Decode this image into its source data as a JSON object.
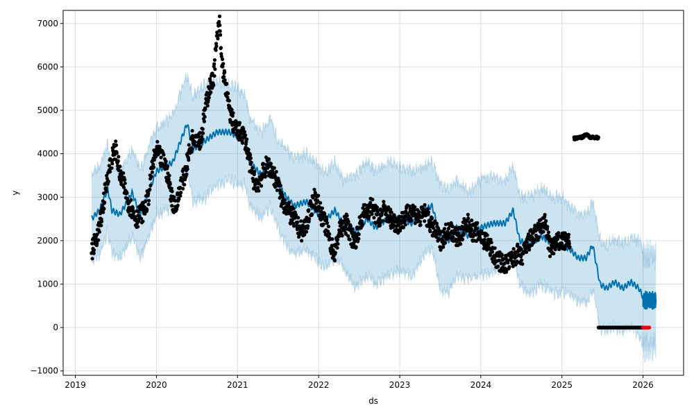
{
  "chart_data": {
    "type": "line",
    "title": "",
    "xlabel": "ds",
    "ylabel": "y",
    "xlim": [
      2018.85,
      2026.5
    ],
    "ylim": [
      -1100,
      7300
    ],
    "grid": true,
    "x_ticks": [
      {
        "value": 2019,
        "label": "2019"
      },
      {
        "value": 2020,
        "label": "2020"
      },
      {
        "value": 2021,
        "label": "2021"
      },
      {
        "value": 2022,
        "label": "2022"
      },
      {
        "value": 2023,
        "label": "2023"
      },
      {
        "value": 2024,
        "label": "2024"
      },
      {
        "value": 2025,
        "label": "2025"
      },
      {
        "value": 2026,
        "label": "2026"
      }
    ],
    "y_ticks": [
      {
        "value": -1000,
        "label": "−1000"
      },
      {
        "value": 0,
        "label": "0"
      },
      {
        "value": 1000,
        "label": "1000"
      },
      {
        "value": 2000,
        "label": "2000"
      },
      {
        "value": 3000,
        "label": "3000"
      },
      {
        "value": 4000,
        "label": "4000"
      },
      {
        "value": 5000,
        "label": "5000"
      },
      {
        "value": 6000,
        "label": "6000"
      },
      {
        "value": 7000,
        "label": "7000"
      }
    ],
    "colors": {
      "forecast": "#0072B2",
      "interval": "#0072B2",
      "actual": "#000000",
      "recent": "#ff0000",
      "grid": "#dddddd"
    },
    "series": [
      {
        "name": "actual",
        "kind": "scatter",
        "x": [
          2019.2,
          2019.25,
          2019.3,
          2019.35,
          2019.4,
          2019.45,
          2019.5,
          2019.55,
          2019.6,
          2019.65,
          2019.7,
          2019.75,
          2019.8,
          2019.85,
          2019.9,
          2019.95,
          2020.0,
          2020.05,
          2020.1,
          2020.15,
          2020.2,
          2020.25,
          2020.3,
          2020.35,
          2020.4,
          2020.45,
          2020.5,
          2020.55,
          2020.6,
          2020.65,
          2020.7,
          2020.75,
          2020.78,
          2020.8,
          2020.85,
          2020.9,
          2020.95,
          2021.0,
          2021.05,
          2021.1,
          2021.15,
          2021.2,
          2021.25,
          2021.3,
          2021.35,
          2021.4,
          2021.45,
          2021.5,
          2021.55,
          2021.6,
          2021.65,
          2021.7,
          2021.75,
          2021.8,
          2021.85,
          2021.9,
          2021.95,
          2022.0,
          2022.05,
          2022.1,
          2022.15,
          2022.2,
          2022.25,
          2022.3,
          2022.35,
          2022.4,
          2022.45,
          2022.5,
          2022.55,
          2022.6,
          2022.65,
          2022.7,
          2022.75,
          2022.8,
          2022.85,
          2022.9,
          2022.95,
          2023.0,
          2023.05,
          2023.1,
          2023.15,
          2023.2,
          2023.25,
          2023.3,
          2023.35,
          2023.4,
          2023.45,
          2023.5,
          2023.55,
          2023.6,
          2023.65,
          2023.7,
          2023.75,
          2023.8,
          2023.85,
          2023.9,
          2023.95,
          2024.0,
          2024.05,
          2024.1,
          2024.15,
          2024.2,
          2024.25,
          2024.3,
          2024.35,
          2024.4,
          2024.45,
          2024.5,
          2024.55,
          2024.6,
          2024.65,
          2024.7,
          2024.75,
          2024.8,
          2024.85,
          2024.9,
          2024.95,
          2025.0,
          2025.05,
          2025.1
        ],
        "y": [
          1750,
          2000,
          2300,
          2900,
          3500,
          3900,
          4100,
          3500,
          3300,
          2900,
          2700,
          2500,
          2600,
          2700,
          3000,
          3700,
          4100,
          3900,
          3800,
          3400,
          2900,
          2800,
          3300,
          3500,
          4000,
          4400,
          4400,
          4300,
          5000,
          5500,
          5700,
          6700,
          7000,
          6200,
          5600,
          5000,
          4700,
          4500,
          4500,
          4300,
          3800,
          3400,
          3300,
          3500,
          3700,
          3700,
          3500,
          3300,
          2900,
          2800,
          2600,
          2500,
          2300,
          2200,
          2400,
          2700,
          3000,
          2800,
          2500,
          2300,
          1900,
          1700,
          2200,
          2300,
          2400,
          2100,
          2000,
          2300,
          2600,
          2700,
          2800,
          2600,
          2500,
          2700,
          2600,
          2500,
          2400,
          2400,
          2500,
          2600,
          2700,
          2600,
          2500,
          2650,
          2500,
          2300,
          2200,
          2000,
          2100,
          2300,
          2200,
          2100,
          2100,
          2300,
          2400,
          2200,
          2200,
          2100,
          2000,
          1900,
          1700,
          1550,
          1500,
          1450,
          1500,
          1600,
          1700,
          1600,
          1800,
          2000,
          2100,
          2200,
          2350,
          2400,
          1800,
          1900,
          1950,
          2000,
          1950,
          2000
        ]
      },
      {
        "name": "actual-plateau",
        "kind": "scatter",
        "x": [
          2025.15,
          2025.25,
          2025.3,
          2025.35,
          2025.45
        ],
        "y": [
          4350,
          4380,
          4450,
          4380,
          4370
        ]
      },
      {
        "name": "actual-zero",
        "kind": "scatter",
        "x": [
          2025.45,
          2026.0
        ],
        "y": [
          0,
          0
        ]
      },
      {
        "name": "recent",
        "kind": "scatter",
        "x": [
          2026.0,
          2026.08
        ],
        "y": [
          0,
          0
        ]
      },
      {
        "name": "yhat",
        "kind": "line",
        "x": [
          2019.2,
          2019.3,
          2019.4,
          2019.45,
          2019.55,
          2019.7,
          2019.8,
          2019.9,
          2020.0,
          2020.1,
          2020.2,
          2020.3,
          2020.38,
          2020.45,
          2020.6,
          2020.75,
          2020.9,
          2021.0,
          2021.1,
          2021.15,
          2021.3,
          2021.4,
          2021.5,
          2021.6,
          2021.7,
          2021.85,
          2022.0,
          2022.1,
          2022.2,
          2022.3,
          2022.45,
          2022.6,
          2022.7,
          2022.85,
          2023.0,
          2023.15,
          2023.3,
          2023.4,
          2023.5,
          2023.6,
          2023.7,
          2023.85,
          2024.0,
          2024.15,
          2024.3,
          2024.4,
          2024.48,
          2024.6,
          2024.75,
          2024.9,
          2025.0,
          2025.1,
          2025.2,
          2025.3,
          2025.38,
          2025.47,
          2025.55,
          2025.65,
          2025.75,
          2025.85,
          2025.95,
          2026.0
        ],
        "y": [
          2500,
          2700,
          3200,
          2700,
          2600,
          3100,
          2600,
          3100,
          3600,
          3700,
          3800,
          4300,
          4700,
          4100,
          4300,
          4500,
          4500,
          4400,
          4300,
          3800,
          3500,
          3800,
          3300,
          3000,
          2800,
          2900,
          2600,
          2500,
          2700,
          2400,
          2200,
          2500,
          2300,
          2500,
          2500,
          2400,
          2700,
          2800,
          2100,
          2000,
          2300,
          2100,
          2300,
          2400,
          2400,
          2700,
          2000,
          1900,
          2100,
          1900,
          1900,
          1800,
          1600,
          1600,
          1900,
          1000,
          900,
          1050,
          900,
          1050,
          900,
          700
        ],
        "halfwidth": [
          1000,
          1000,
          1000,
          1000,
          1000,
          1000,
          1000,
          1000,
          1000,
          1000,
          1100,
          1100,
          1100,
          1200,
          1300,
          1200,
          1100,
          1100,
          1000,
          1000,
          1000,
          1000,
          1000,
          1100,
          1100,
          1100,
          1100,
          1100,
          1100,
          1000,
          1300,
          1300,
          1300,
          1300,
          1200,
          1200,
          1000,
          1000,
          1200,
          1200,
          1100,
          1000,
          1100,
          1100,
          1000,
          1000,
          1000,
          1100,
          1100,
          1100,
          1100,
          1000,
          1000,
          1000,
          1000,
          1000,
          1000,
          1000,
          1000,
          1000,
          1100,
          1100
        ]
      },
      {
        "name": "yhat-future",
        "kind": "oscillating",
        "x_range": [
          2026.0,
          2026.16
        ],
        "y_range": [
          400,
          850
        ],
        "halfwidth": 1250
      }
    ]
  }
}
